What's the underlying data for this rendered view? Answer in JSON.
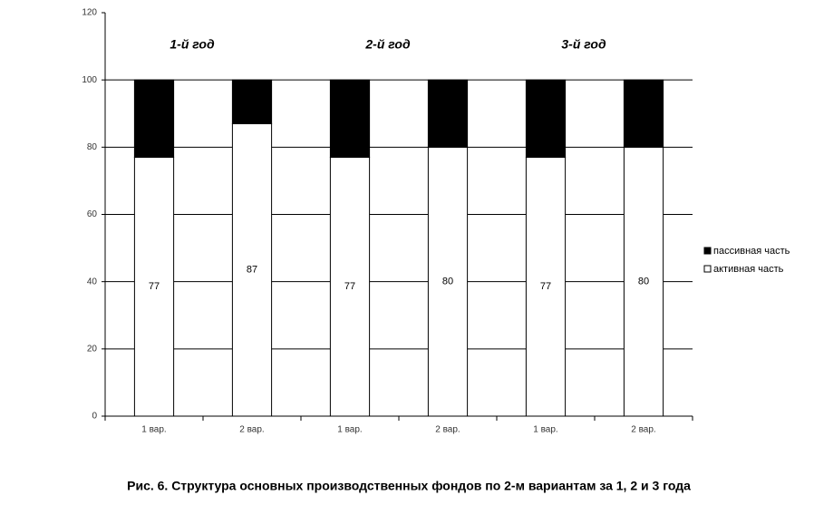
{
  "chart_data": {
    "type": "stacked_bar",
    "title": "Рис. 6. Структура основных производственных фондов по 2-м вариантам за 1, 2 и 3 года",
    "categories": [
      "1 вар.",
      "2 вар.",
      "1 вар.",
      "2 вар.",
      "1 вар.",
      "2 вар."
    ],
    "series": [
      {
        "name": "активная часть",
        "color": "#ffffff",
        "values": [
          77,
          87,
          77,
          80,
          77,
          80
        ],
        "labels": true
      },
      {
        "name": "пассивная часть",
        "color": "#000000",
        "values": [
          23,
          13,
          23,
          20,
          23,
          20
        ],
        "labels": false
      }
    ],
    "annotations": [
      "1-й год",
      "2-й год",
      "3-й год"
    ],
    "ylim": [
      0,
      120
    ],
    "yticks": [
      0,
      20,
      40,
      60,
      80,
      100,
      120
    ],
    "grid": true,
    "legend": "right"
  }
}
